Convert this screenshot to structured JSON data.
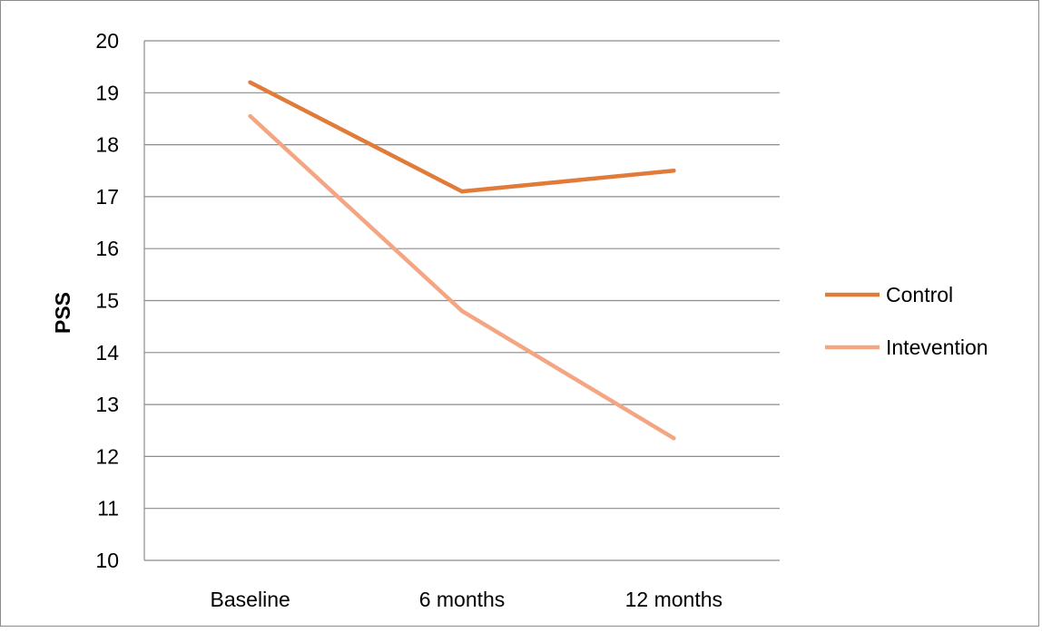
{
  "chart_data": {
    "type": "line",
    "title": "",
    "xlabel": "",
    "ylabel": "PSS",
    "categories": [
      "Baseline",
      "6 months",
      "12 months"
    ],
    "ylim": [
      10,
      20
    ],
    "yticks": [
      10,
      11,
      12,
      13,
      14,
      15,
      16,
      17,
      18,
      19,
      20
    ],
    "grid": true,
    "legend_position": "right",
    "series": [
      {
        "name": "Control",
        "values": [
          19.2,
          17.1,
          17.5
        ],
        "color": "#e07b39"
      },
      {
        "name": "Intevention",
        "values": [
          18.55,
          14.8,
          12.35
        ],
        "color": "#f4a683"
      }
    ]
  }
}
